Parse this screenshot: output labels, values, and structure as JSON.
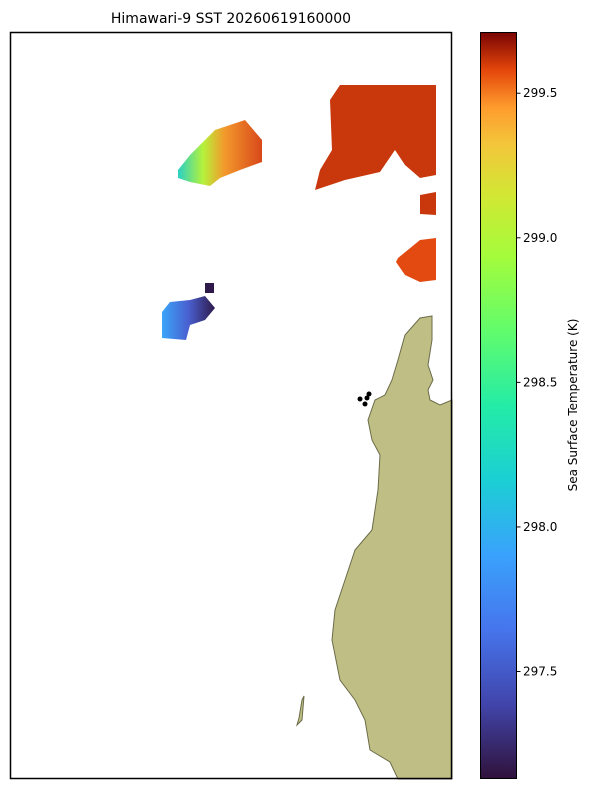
{
  "map": {
    "title": "Himawari-9 SST 20260619160000",
    "colorbar": {
      "label": "Sea Surface Temperature (K)",
      "lim": [
        297.13,
        299.71
      ],
      "ticks": [
        297.5,
        {
          "value": 298,
          "label": "298.0"
        },
        298.5,
        {
          "value": 299,
          "label": "299.0"
        },
        299.5
      ]
    }
  }
}
